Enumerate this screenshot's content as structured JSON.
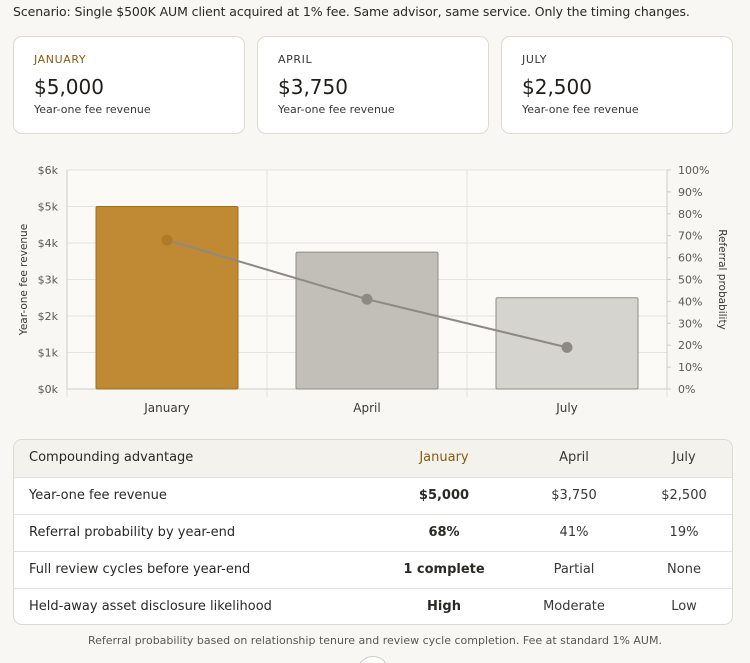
{
  "scenario": "Scenario: Single $500K AUM client acquired at 1% fee. Same advisor, same service. Only the timing changes.",
  "cards": [
    {
      "month": "JANUARY",
      "amount": "$5,000",
      "sub": "Year-one fee revenue"
    },
    {
      "month": "APRIL",
      "amount": "$3,750",
      "sub": "Year-one fee revenue"
    },
    {
      "month": "JULY",
      "amount": "$2,500",
      "sub": "Year-one fee revenue"
    }
  ],
  "chart_data": {
    "type": "bar",
    "categories": [
      "January",
      "April",
      "July"
    ],
    "series": [
      {
        "name": "Year-one fee revenue",
        "kind": "bar",
        "axis": "left",
        "values": [
          5000,
          3750,
          2500
        ]
      },
      {
        "name": "Referral probability",
        "kind": "line",
        "axis": "right",
        "values": [
          68,
          41,
          19
        ]
      }
    ],
    "ylabel_left": "Year-one fee revenue",
    "ylabel_right": "Referral probability",
    "ylim_left": [
      0,
      6000
    ],
    "ylim_right": [
      0,
      100
    ],
    "left_ticks": [
      "$0k",
      "$1k",
      "$2k",
      "$3k",
      "$4k",
      "$5k",
      "$6k"
    ],
    "right_ticks": [
      "0%",
      "10%",
      "20%",
      "30%",
      "40%",
      "50%",
      "60%",
      "70%",
      "80%",
      "90%",
      "100%"
    ],
    "bar_fills": [
      "#c08a35",
      "#c2bfb9",
      "#d6d4cf"
    ],
    "bar_strokes": [
      "#a06f1c",
      "#8f8c86",
      "#8f8c86"
    ],
    "line_color": "#8d8a84",
    "point_colors": [
      "#b07b27",
      "#8d8a84",
      "#8d8a84"
    ],
    "grid": true
  },
  "table": {
    "headers": [
      "Compounding advantage",
      "January",
      "April",
      "July"
    ],
    "rows": [
      [
        "Year-one fee revenue",
        "$5,000",
        "$3,750",
        "$2,500"
      ],
      [
        "Referral probability by year-end",
        "68%",
        "41%",
        "19%"
      ],
      [
        "Full review cycles before year-end",
        "1 complete",
        "Partial",
        "None"
      ],
      [
        "Held-away asset disclosure likelihood",
        "High",
        "Moderate",
        "Low"
      ]
    ]
  },
  "footnote": "Referral probability based on relationship tenure and review cycle completion. Fee at standard 1% AUM."
}
